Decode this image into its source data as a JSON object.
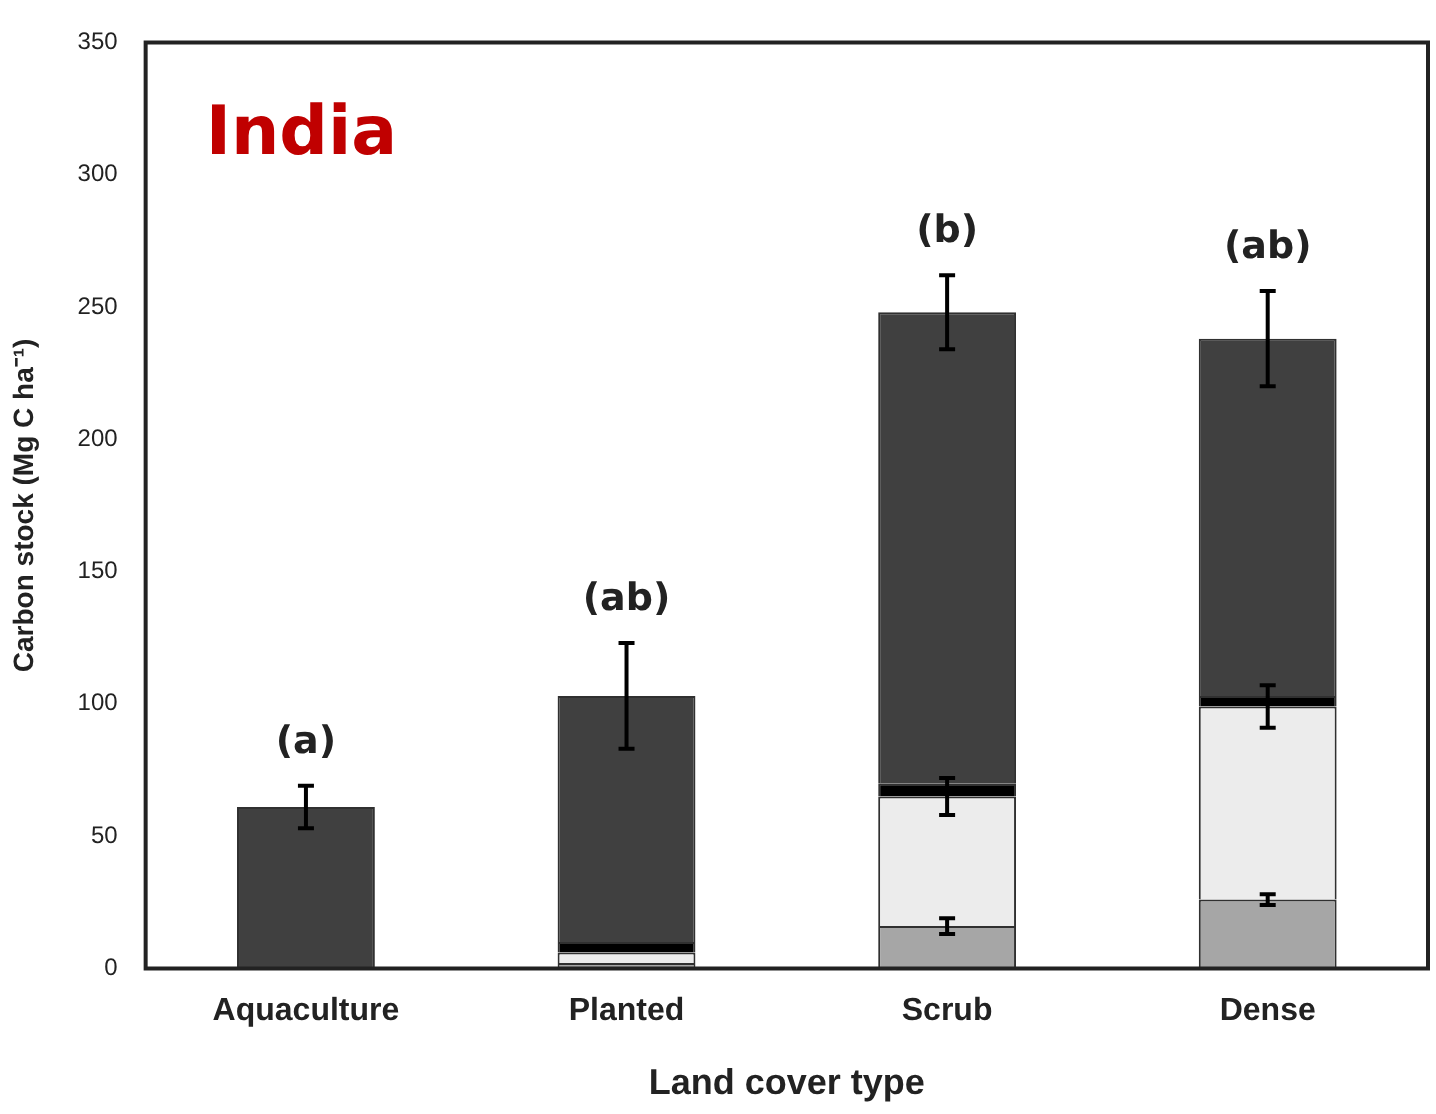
{
  "chart_data": {
    "type": "bar",
    "stacked": true,
    "categories": [
      "Aquaculture",
      "Planted",
      "Scrub",
      "Dense"
    ],
    "series": [
      {
        "color": "#a6a6a6",
        "values": [
          0,
          2,
          16,
          26
        ],
        "errors": [
          null,
          null,
          3,
          2
        ]
      },
      {
        "color": "#ececec",
        "values": [
          0,
          4,
          49,
          73
        ],
        "errors": [
          null,
          null,
          7,
          8
        ]
      },
      {
        "color": "#000000",
        "values": [
          0,
          4,
          5,
          4
        ]
      },
      {
        "color": "#404040",
        "values": [
          61,
          93,
          178,
          135
        ],
        "errors": [
          8,
          20,
          14,
          18
        ]
      }
    ],
    "ylim": [
      0,
      350
    ],
    "yticks": [
      0,
      50,
      100,
      150,
      200,
      250,
      300,
      350
    ],
    "grid": false,
    "legend": false,
    "xlabel": "Land cover type",
    "ylabel": "Carbon stock (Mg C ha⁻¹)",
    "annotations": [
      "India",
      "(a)",
      "(ab)",
      "(b)",
      "(ab)"
    ]
  }
}
